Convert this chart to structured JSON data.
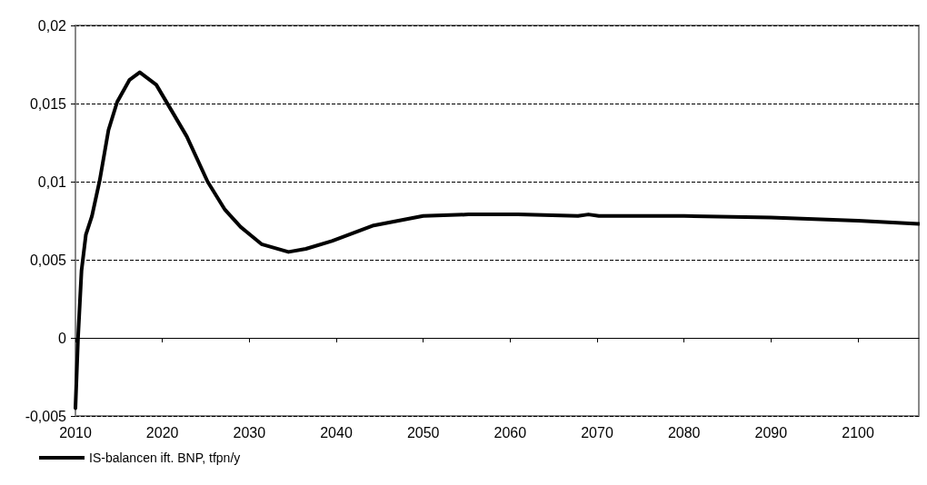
{
  "chart_data": {
    "type": "line",
    "xlim": [
      2010,
      2107
    ],
    "xticks": [
      2010,
      2020,
      2030,
      2040,
      2050,
      2060,
      2070,
      2080,
      2090,
      2100
    ],
    "ylim": [
      -0.005,
      0.02
    ],
    "yticks": [
      {
        "value": -0.005,
        "label": "-0,005"
      },
      {
        "value": 0,
        "label": "0"
      },
      {
        "value": 0.005,
        "label": "0,005"
      },
      {
        "value": 0.01,
        "label": "0,01"
      },
      {
        "value": 0.015,
        "label": "0,015"
      },
      {
        "value": 0.02,
        "label": "0,02"
      }
    ],
    "grid": "y",
    "legend": "bottom left",
    "marker": "none",
    "line_style": "solid",
    "series": [
      {
        "name": "IS-balancen ift. BNP, tfpn/y",
        "color": "#000000",
        "x": [
          2010,
          2010.3,
          2010.7,
          2011.2,
          2011.9,
          2012.8,
          2013.8,
          2014.8,
          2016.2,
          2017.4,
          2019.3,
          2021,
          2022.8,
          2025.2,
          2027.2,
          2029,
          2031.4,
          2034.5,
          2036.5,
          2039.5,
          2044.3,
          2050,
          2055.2,
          2060.9,
          2067.8,
          2069,
          2070.2,
          2074,
          2075.2,
          2080,
          2090,
          2100,
          2107
        ],
        "values": [
          -0.0045,
          0,
          0.0043,
          0.0066,
          0.0078,
          0.0101,
          0.0133,
          0.0151,
          0.0165,
          0.017,
          0.0162,
          0.0146,
          0.0129,
          0.01,
          0.0082,
          0.0071,
          0.006,
          0.0055,
          0.0057,
          0.0062,
          0.0072,
          0.0078,
          0.0079,
          0.0079,
          0.0078,
          0.0079,
          0.0078,
          0.0078,
          0.0078,
          0.0078,
          0.0077,
          0.0075,
          0.0073
        ]
      }
    ]
  }
}
